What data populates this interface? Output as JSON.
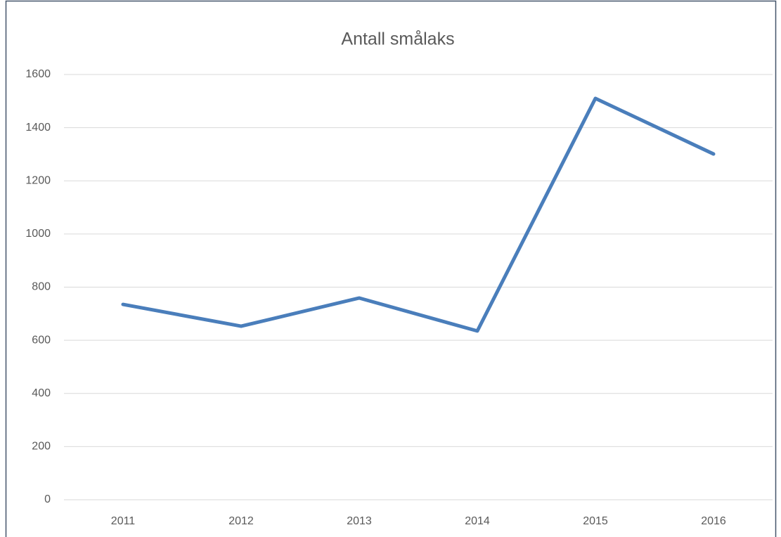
{
  "chart_data": {
    "type": "line",
    "title": "Antall smålaks",
    "categories": [
      "2011",
      "2012",
      "2013",
      "2014",
      "2015",
      "2016"
    ],
    "series": [
      {
        "name": "Antall smålaks",
        "color": "#4a7ebb",
        "values": [
          735,
          653,
          759,
          635,
          1510,
          1301
        ]
      }
    ],
    "ylim": [
      0,
      1600
    ],
    "yticks": [
      0,
      200,
      400,
      600,
      800,
      1000,
      1200,
      1400,
      1600
    ],
    "grid": true
  }
}
